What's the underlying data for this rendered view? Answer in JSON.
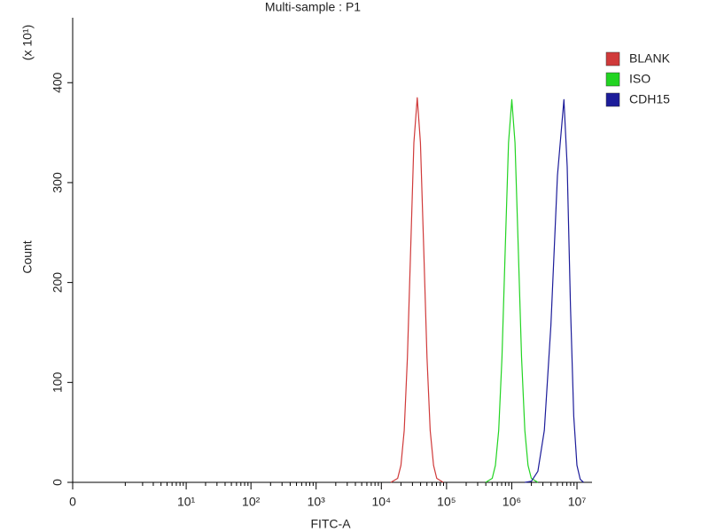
{
  "chart_data": {
    "type": "line",
    "title": "Multi-sample : P1",
    "xlabel": "FITC-A",
    "ylabel": "Count",
    "ylabel_multiplier": "(x 10¹)",
    "xscale": "logicle",
    "xlim": [
      0,
      17000000
    ],
    "xticks": [
      0,
      {
        "value": 10,
        "label": "10¹"
      },
      {
        "value": 100,
        "label": "10²"
      },
      {
        "value": 1000,
        "label": "10³"
      },
      {
        "value": 10000,
        "label": "10⁴"
      },
      {
        "value": 100000,
        "label": "10⁵"
      },
      {
        "value": 1000000,
        "label": "10⁶"
      },
      {
        "value": 10000000,
        "label": "10⁷"
      }
    ],
    "ylim": [
      0,
      465
    ],
    "yticks": [
      0,
      100,
      200,
      300,
      400
    ],
    "legend": "right",
    "series": [
      {
        "name": "BLANK",
        "color": "#d03a3a",
        "x": [
          14000,
          17800,
          20000,
          22400,
          25100,
          28200,
          31600,
          35500,
          39800,
          44700,
          50100,
          56200,
          63100,
          70800,
          89100
        ],
        "values": [
          0,
          4,
          17,
          52,
          125,
          234,
          340,
          385,
          340,
          234,
          125,
          52,
          17,
          4,
          0
        ]
      },
      {
        "name": "ISO",
        "color": "#22d422",
        "x": [
          398000,
          501000,
          562000,
          631000,
          708000,
          794000,
          891000,
          1000000,
          1122000,
          1259000,
          1413000,
          1585000,
          1778000,
          1995000,
          2512000
        ],
        "values": [
          0,
          4,
          17,
          52,
          125,
          234,
          340,
          383,
          340,
          234,
          125,
          52,
          17,
          4,
          0
        ]
      },
      {
        "name": "CDH15",
        "color": "#1c1c9a",
        "x": [
          1585000,
          1995000,
          2512000,
          3162000,
          3981000,
          5012000,
          6310000,
          7079000,
          7943000,
          8913000,
          10000000,
          11220000,
          12590000
        ],
        "values": [
          0,
          1,
          11,
          52,
          157,
          307,
          383,
          316,
          176,
          66,
          17,
          3,
          0
        ]
      }
    ]
  }
}
